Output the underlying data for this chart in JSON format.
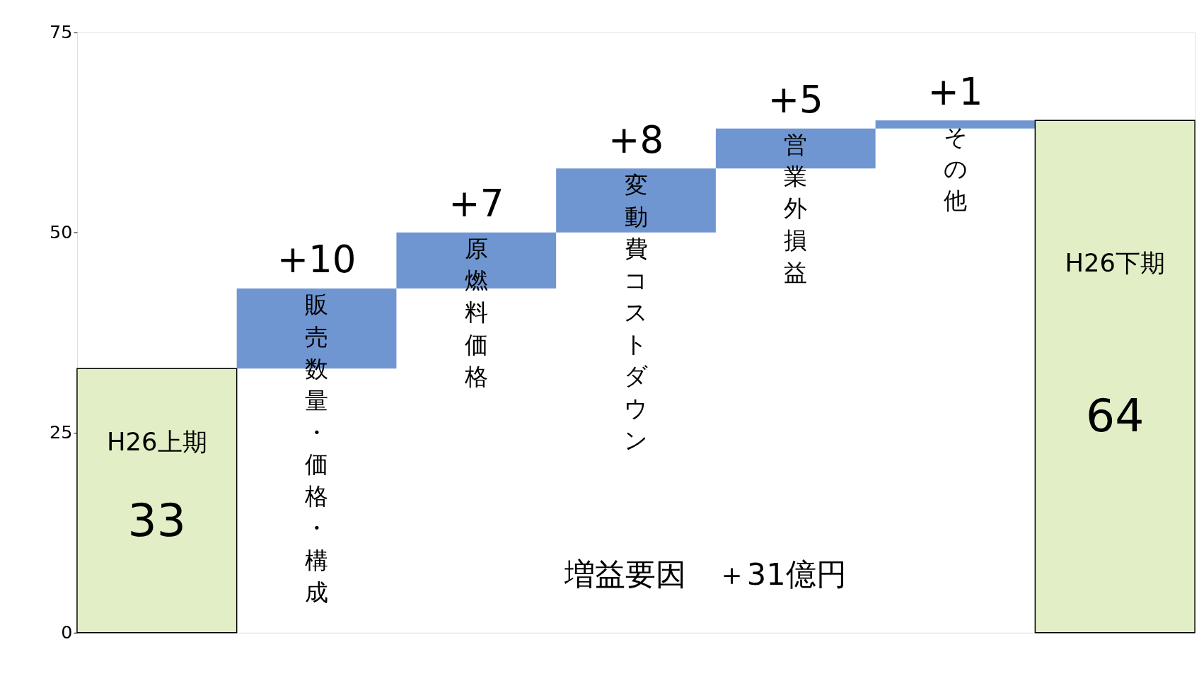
{
  "chart_data": {
    "type": "bar",
    "categories": [
      "H26上期",
      "販売数量・価格・構成",
      "原燃料価格",
      "変動費コストダウン",
      "営業外損益",
      "その他",
      "H26下期"
    ],
    "values": [
      33,
      10,
      7,
      8,
      5,
      1,
      64
    ],
    "base": [
      0,
      33,
      43,
      50,
      58,
      63,
      0
    ],
    "colors": [
      "#e2efc6",
      "#7096d2",
      "#7096d2",
      "#7096d2",
      "#7096d2",
      "#7096d2",
      "#e2efc6"
    ],
    "value_labels": [
      "33",
      "+10",
      "+7",
      "+8",
      "+5",
      "+1",
      "64"
    ],
    "ylim": [
      0,
      75
    ],
    "yticks": [
      0,
      25,
      50,
      75
    ],
    "tick_labels": "y",
    "grid": false,
    "annotations": [
      "増益要因　＋31億円"
    ]
  }
}
